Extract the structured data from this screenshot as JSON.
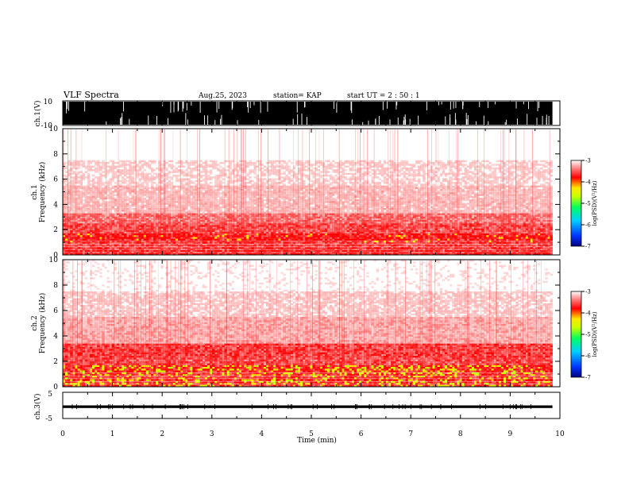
{
  "header": {
    "title": "VLF Spectra",
    "date": "Aug.25, 2023",
    "station": "station= KAP",
    "start": "start  UT =   2 : 50 : 1"
  },
  "colors": {
    "axis": "#000000",
    "spectrogram_background": "#ffffff",
    "colormap": [
      "#000080",
      "#0033ff",
      "#00d0ff",
      "#00ff60",
      "#c8ff00",
      "#ffe800",
      "#ff0000",
      "#ffffff"
    ]
  },
  "chart_data": [
    {
      "type": "line",
      "name_panel": "ch1-waveform",
      "ylabel": "ch.1(V)",
      "ylim": [
        -10,
        10
      ],
      "yticklabels": [
        "10",
        "-10"
      ],
      "xlim": [
        0,
        10
      ],
      "note_values": "dense waveform saturating between -10 and 10 V from 0 to about 9.85 min"
    },
    {
      "type": "heatmap",
      "ylabel": "ch.1\nFrequency (kHz)",
      "ylabel_line1": "ch.1",
      "ylabel_line2": "Frequency (kHz)",
      "ylim": [
        0,
        10
      ],
      "yticks": [
        0,
        2,
        4,
        6,
        8,
        10
      ],
      "xlim": [
        0,
        10
      ],
      "data_end_min": 9.85,
      "bands": [
        {
          "from_khz": 0.0,
          "to_khz": 0.5,
          "level": 0.9
        },
        {
          "from_khz": 0.5,
          "to_khz": 1.0,
          "level": 0.75
        },
        {
          "from_khz": 1.0,
          "to_khz": 1.7,
          "level": 0.95
        },
        {
          "from_khz": 1.7,
          "to_khz": 2.5,
          "level": 0.7
        },
        {
          "from_khz": 2.5,
          "to_khz": 3.3,
          "level": 0.55
        },
        {
          "from_khz": 3.3,
          "to_khz": 5.5,
          "level": 0.3
        },
        {
          "from_khz": 5.5,
          "to_khz": 7.5,
          "level": 0.22
        },
        {
          "from_khz": 7.5,
          "to_khz": 10.0,
          "level": 0.12
        }
      ],
      "colorbar": {
        "label": "log(PSD)(V²/Hz)",
        "range": [
          -7,
          -3
        ],
        "ticklabels": [
          "-3",
          "-4",
          "-5",
          "-6",
          "-7"
        ]
      }
    },
    {
      "type": "heatmap",
      "ylabel": "ch.2\nFrequency (kHz)",
      "ylabel_line1": "ch.2",
      "ylabel_line2": "Frequency (kHz)",
      "ylim": [
        0,
        10
      ],
      "yticks": [
        0,
        2,
        4,
        6,
        8,
        10
      ],
      "xlim": [
        0,
        10
      ],
      "data_end_min": 9.85,
      "bands": [
        {
          "from_khz": 0.0,
          "to_khz": 0.6,
          "level": 1.0
        },
        {
          "from_khz": 0.6,
          "to_khz": 1.0,
          "level": 0.9
        },
        {
          "from_khz": 1.0,
          "to_khz": 1.7,
          "level": 1.0
        },
        {
          "from_khz": 1.7,
          "to_khz": 2.3,
          "level": 0.7
        },
        {
          "from_khz": 2.3,
          "to_khz": 3.4,
          "level": 0.75
        },
        {
          "from_khz": 3.4,
          "to_khz": 5.5,
          "level": 0.35
        },
        {
          "from_khz": 5.5,
          "to_khz": 7.5,
          "level": 0.25
        },
        {
          "from_khz": 7.5,
          "to_khz": 10.0,
          "level": 0.15
        }
      ],
      "colorbar": {
        "label": "log(PSD)(V²/Hz)",
        "range": [
          -7,
          -3
        ],
        "ticklabels": [
          "-3",
          "-4",
          "-5",
          "-6",
          "-7"
        ]
      }
    },
    {
      "type": "line",
      "ylabel": "ch.3(V)",
      "ylim": [
        -5,
        5
      ],
      "yticklabels": [
        "5",
        "-5"
      ],
      "xlim": [
        0,
        10
      ],
      "xlabel": "Time (min)",
      "xticks": [
        0,
        1,
        2,
        3,
        4,
        5,
        6,
        7,
        8,
        9,
        10
      ],
      "band_values": [
        -1,
        0
      ]
    }
  ]
}
